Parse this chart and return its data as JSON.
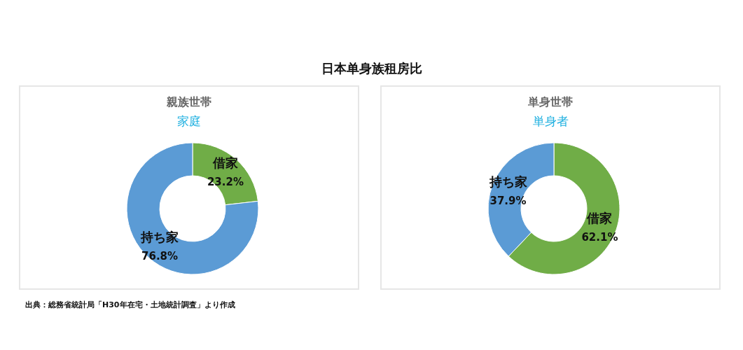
{
  "chart_data": [
    {
      "type": "other",
      "title": "日本单身族租房比"
    },
    {
      "type": "donut",
      "title": "親族世帯",
      "subtitle": "家庭",
      "categories": [
        "借家",
        "持ち家"
      ],
      "values": [
        23.2,
        76.8
      ],
      "colors": [
        "#70ad47",
        "#5b9bd5"
      ],
      "value_labels": [
        "23.2%",
        "76.8%"
      ]
    },
    {
      "type": "donut",
      "title": "単身世帯",
      "subtitle": "単身者",
      "categories": [
        "借家",
        "持ち家"
      ],
      "values": [
        62.1,
        37.9
      ],
      "colors": [
        "#70ad47",
        "#5b9bd5"
      ],
      "value_labels": [
        "62.1%",
        "37.9%"
      ]
    },
    {
      "type": "other",
      "annotations": [
        "出典：総務省統計局「H30年在宅・土地統計調査」より作成"
      ]
    }
  ]
}
